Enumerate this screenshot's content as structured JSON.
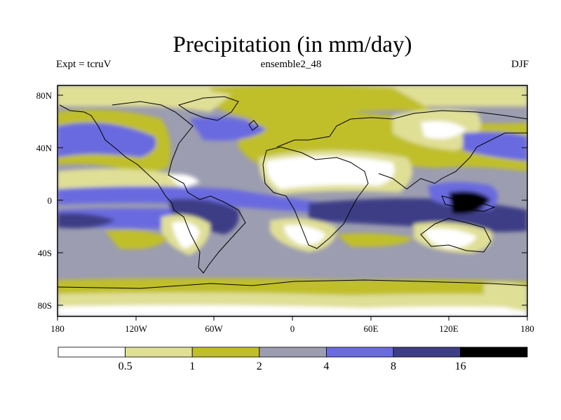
{
  "title": "Precipitation (in mm/day)",
  "header": {
    "experiment": "Expt = tcruV",
    "ensemble": "ensemble2_48",
    "season": "DJF"
  },
  "axes": {
    "lat_labels": [
      "80N",
      "40N",
      "0",
      "40S",
      "80S"
    ],
    "lon_labels": [
      "180",
      "120W",
      "60W",
      "0",
      "60E",
      "120E",
      "180"
    ]
  },
  "legend": {
    "labels": [
      "0.5",
      "1",
      "2",
      "4",
      "8",
      "16"
    ],
    "colors": [
      "#ffffff",
      "#e0df96",
      "#c0bf2a",
      "#9c9db0",
      "#6b6be0",
      "#3e3e86",
      "#000000"
    ]
  }
}
